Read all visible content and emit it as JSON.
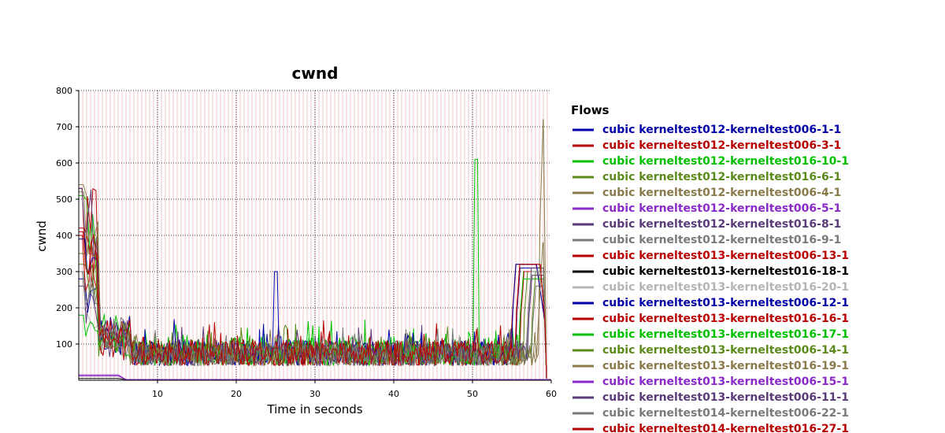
{
  "chart_data": {
    "type": "line",
    "title": "cwnd",
    "xlabel": "Time in seconds",
    "ylabel": "cwnd",
    "xlim": [
      0,
      60
    ],
    "ylim": [
      0,
      800
    ],
    "xticks": [
      "10",
      "20",
      "30",
      "40",
      "50",
      "60"
    ],
    "yticks": [
      "100",
      "200",
      "300",
      "400",
      "500",
      "600",
      "700",
      "800"
    ],
    "grid": true,
    "legend_title": "Flows",
    "legend_position": "right",
    "series": [
      {
        "name": "cubic kerneltest012-kerneltest006-1-1",
        "color": "#0000a8"
      },
      {
        "name": "cubic kerneltest012-kerneltest006-3-1",
        "color": "#b80000"
      },
      {
        "name": "cubic kerneltest012-kerneltest016-10-1",
        "color": "#00c000"
      },
      {
        "name": "cubic kerneltest012-kerneltest016-6-1",
        "color": "#5a8a1a"
      },
      {
        "name": "cubic kerneltest012-kerneltest006-4-1",
        "color": "#8a7a4a"
      },
      {
        "name": "cubic kerneltest012-kerneltest006-5-1",
        "color": "#8a2ac8"
      },
      {
        "name": "cubic kerneltest012-kerneltest016-8-1",
        "color": "#5a3a78"
      },
      {
        "name": "cubic kerneltest012-kerneltest016-9-1",
        "color": "#7a7a7a"
      },
      {
        "name": "cubic kerneltest013-kerneltest006-13-1",
        "color": "#b80000"
      },
      {
        "name": "cubic kerneltest013-kerneltest016-18-1",
        "color": "#000000"
      },
      {
        "name": "cubic kerneltest013-kerneltest016-20-1",
        "color": "#b4b4b4"
      },
      {
        "name": "cubic kerneltest013-kerneltest006-12-1",
        "color": "#0000a8"
      },
      {
        "name": "cubic kerneltest013-kerneltest016-16-1",
        "color": "#b80000"
      },
      {
        "name": "cubic kerneltest013-kerneltest016-17-1",
        "color": "#00c000"
      },
      {
        "name": "cubic kerneltest013-kerneltest006-14-1",
        "color": "#5a8a1a"
      },
      {
        "name": "cubic kerneltest013-kerneltest016-19-1",
        "color": "#8a7a4a"
      },
      {
        "name": "cubic kerneltest013-kerneltest006-15-1",
        "color": "#8a2ac8"
      },
      {
        "name": "cubic kerneltest013-kerneltest006-11-1",
        "color": "#5a3a78"
      },
      {
        "name": "cubic kerneltest014-kerneltest006-22-1",
        "color": "#7a7a7a"
      },
      {
        "name": "cubic kerneltest014-kerneltest016-27-1",
        "color": "#b80000"
      }
    ]
  }
}
